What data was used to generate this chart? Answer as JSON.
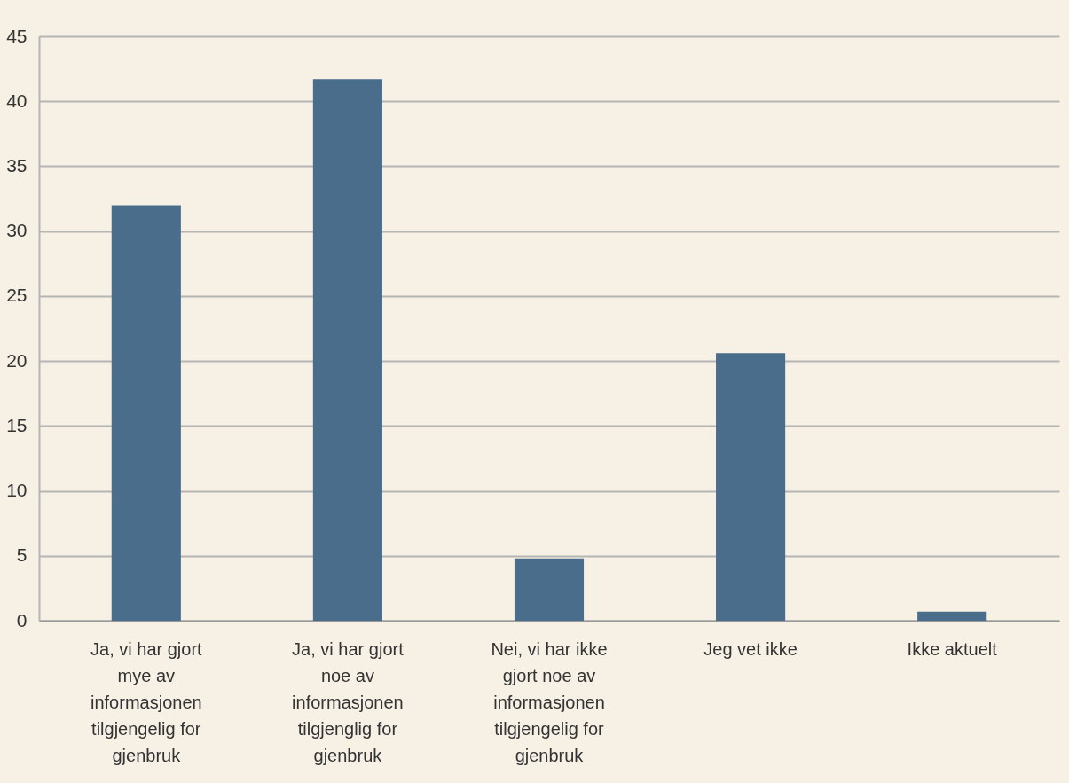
{
  "chart_data": {
    "type": "bar",
    "categories": [
      "Ja, vi har gjort mye av informasjonen tilgjengelig for gjenbruk",
      "Ja, vi har gjort noe av informasjonen tilgjenglig for gjenbruk",
      "Nei, vi har ikke gjort noe av informasjonen tilgjengelig for gjenbruk",
      "Jeg vet ikke",
      "Ikke aktuelt"
    ],
    "values": [
      32,
      41.7,
      4.8,
      20.6,
      0.7
    ],
    "color": "#4a6d8c",
    "ylim": [
      0,
      45
    ],
    "yticks": [
      0,
      5,
      10,
      15,
      20,
      25,
      30,
      35,
      40,
      45
    ],
    "grid": "y"
  }
}
